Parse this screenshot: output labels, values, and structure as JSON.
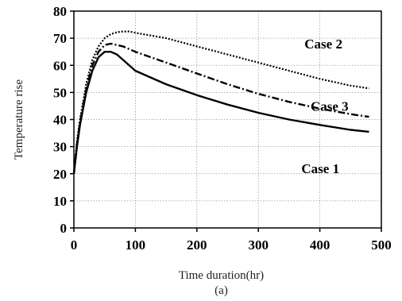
{
  "chart_data": {
    "type": "line",
    "xlabel": "Time duration(hr)",
    "ylabel": "Temperature rise",
    "caption": "(a)",
    "xlim": [
      0,
      500
    ],
    "ylim": [
      0,
      80
    ],
    "xticks": [
      0,
      100,
      200,
      300,
      400,
      500
    ],
    "yticks": [
      0,
      10,
      20,
      30,
      40,
      50,
      60,
      70,
      80
    ],
    "grid": true,
    "series": [
      {
        "name": "Case 1",
        "style": "solid",
        "color": "#000000",
        "x": [
          0,
          5,
          10,
          20,
          30,
          40,
          50,
          60,
          70,
          80,
          100,
          150,
          200,
          250,
          300,
          350,
          400,
          450,
          480
        ],
        "y": [
          20,
          30,
          38,
          50,
          58,
          63,
          65,
          65,
          64,
          62,
          58,
          53,
          49,
          45.5,
          42.5,
          40,
          38,
          36.2,
          35.5
        ]
      },
      {
        "name": "Case 3",
        "style": "dash-dot",
        "color": "#000000",
        "x": [
          0,
          5,
          10,
          20,
          30,
          40,
          50,
          60,
          70,
          80,
          100,
          150,
          200,
          250,
          300,
          350,
          400,
          450,
          480
        ],
        "y": [
          20,
          31,
          39,
          51,
          60,
          65,
          67.5,
          68,
          67.5,
          67,
          65,
          61,
          57,
          53,
          49.5,
          46.5,
          44,
          42,
          41
        ]
      },
      {
        "name": "Case 2",
        "style": "dotted",
        "color": "#000000",
        "x": [
          0,
          5,
          10,
          20,
          30,
          40,
          50,
          60,
          70,
          80,
          90,
          100,
          150,
          200,
          250,
          300,
          350,
          400,
          450,
          480
        ],
        "y": [
          20,
          32,
          40,
          53,
          62,
          67,
          70,
          71.5,
          72.2,
          72.5,
          72.5,
          72,
          70,
          67,
          64,
          61,
          58,
          55,
          52.5,
          51.5
        ]
      }
    ],
    "annotations": [
      {
        "text": "Case 2",
        "x": 375,
        "y": 68
      },
      {
        "text": "Case 3",
        "x": 385,
        "y": 45
      },
      {
        "text": "Case 1",
        "x": 370,
        "y": 22
      }
    ]
  }
}
